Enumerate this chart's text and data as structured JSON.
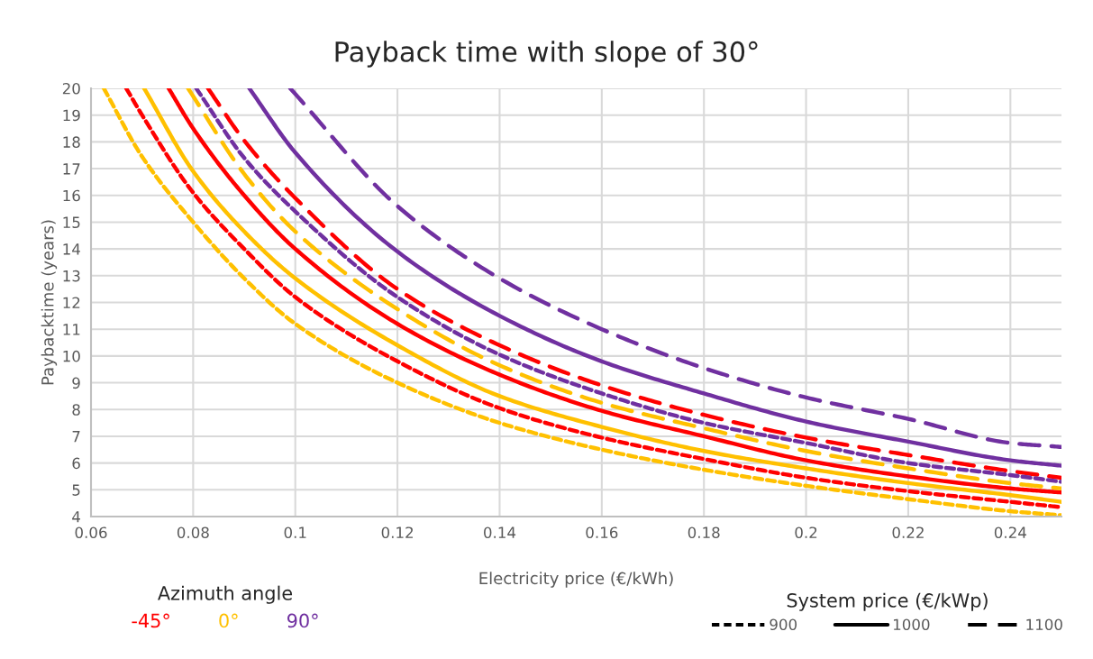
{
  "chart_data": {
    "type": "line",
    "title": "Payback time with slope of 30°",
    "xlabel": "Electricity price (€/kWh)",
    "ylabel": "Paybacktime (years)",
    "xlim": [
      0.06,
      0.25
    ],
    "xticks": [
      0.06,
      0.08,
      0.1,
      0.12,
      0.14,
      0.16,
      0.18,
      0.2,
      0.22,
      0.24
    ],
    "ylim": [
      4,
      20
    ],
    "yticks": [
      4,
      5,
      6,
      7,
      8,
      9,
      10,
      11,
      12,
      13,
      14,
      15,
      16,
      17,
      18,
      19,
      20
    ],
    "grid": true,
    "marker": "none",
    "annotations": [
      "Azimuth angle",
      "-45°",
      "0°",
      "90°",
      "System price (€/kWp)",
      "900",
      "1000",
      "1100"
    ],
    "series": [
      {
        "color": "#ff0000",
        "line_style": "dotted",
        "x": [
          0.0669,
          0.07,
          0.08,
          0.09,
          0.1,
          0.12,
          0.14,
          0.16,
          0.18,
          0.2,
          0.22,
          0.24,
          0.25
        ],
        "values": [
          20,
          19.0,
          16.1,
          14.0,
          12.2,
          9.8,
          8.05,
          6.95,
          6.15,
          5.45,
          4.95,
          4.55,
          4.35
        ]
      },
      {
        "color": "#ff0000",
        "line_style": "solid",
        "x": [
          0.0752,
          0.08,
          0.09,
          0.1,
          0.12,
          0.14,
          0.16,
          0.18,
          0.2,
          0.22,
          0.24,
          0.25
        ],
        "values": [
          20,
          18.5,
          16.0,
          14.0,
          11.2,
          9.3,
          7.95,
          7.0,
          6.1,
          5.5,
          5.05,
          4.9
        ]
      },
      {
        "color": "#ff0000",
        "line_style": "dashed",
        "x": [
          0.0829,
          0.09,
          0.1,
          0.12,
          0.14,
          0.16,
          0.18,
          0.2,
          0.22,
          0.24,
          0.25
        ],
        "values": [
          20,
          18.05,
          15.9,
          12.5,
          10.4,
          8.9,
          7.8,
          6.95,
          6.3,
          5.7,
          5.45
        ]
      },
      {
        "color": "#ffc000",
        "line_style": "dotted",
        "x": [
          0.0625,
          0.07,
          0.08,
          0.09,
          0.1,
          0.12,
          0.14,
          0.16,
          0.18,
          0.2,
          0.22,
          0.24,
          0.25
        ],
        "values": [
          20,
          17.45,
          15.0,
          12.9,
          11.2,
          9.0,
          7.5,
          6.5,
          5.75,
          5.15,
          4.65,
          4.2,
          4.05
        ]
      },
      {
        "color": "#ffc000",
        "line_style": "solid",
        "x": [
          0.0704,
          0.08,
          0.09,
          0.1,
          0.12,
          0.14,
          0.16,
          0.18,
          0.2,
          0.22,
          0.24,
          0.25
        ],
        "values": [
          20,
          16.9,
          14.65,
          12.9,
          10.4,
          8.5,
          7.35,
          6.45,
          5.8,
          5.25,
          4.8,
          4.55
        ]
      },
      {
        "color": "#ffc000",
        "line_style": "dashed",
        "x": [
          0.079,
          0.09,
          0.1,
          0.12,
          0.14,
          0.16,
          0.18,
          0.2,
          0.22,
          0.24,
          0.25
        ],
        "values": [
          20,
          16.8,
          14.65,
          11.75,
          9.65,
          8.25,
          7.3,
          6.45,
          5.8,
          5.25,
          5.05
        ]
      },
      {
        "color": "#7030a0",
        "line_style": "dotted",
        "x": [
          0.0806,
          0.09,
          0.1,
          0.12,
          0.14,
          0.16,
          0.18,
          0.2,
          0.22,
          0.24,
          0.25
        ],
        "values": [
          20,
          17.4,
          15.4,
          12.2,
          10.05,
          8.6,
          7.5,
          6.75,
          6.0,
          5.55,
          5.3
        ]
      },
      {
        "color": "#7030a0",
        "line_style": "solid",
        "x": [
          0.091,
          0.1,
          0.12,
          0.14,
          0.16,
          0.18,
          0.2,
          0.22,
          0.24,
          0.25
        ],
        "values": [
          20,
          17.6,
          13.9,
          11.5,
          9.8,
          8.6,
          7.55,
          6.8,
          6.1,
          5.9
        ]
      },
      {
        "color": "#7030a0",
        "line_style": "dashed",
        "x": [
          0.099,
          0.12,
          0.14,
          0.16,
          0.18,
          0.2,
          0.22,
          0.24,
          0.25
        ],
        "values": [
          20,
          15.6,
          12.9,
          11.0,
          9.55,
          8.45,
          7.65,
          6.75,
          6.6
        ]
      }
    ]
  }
}
